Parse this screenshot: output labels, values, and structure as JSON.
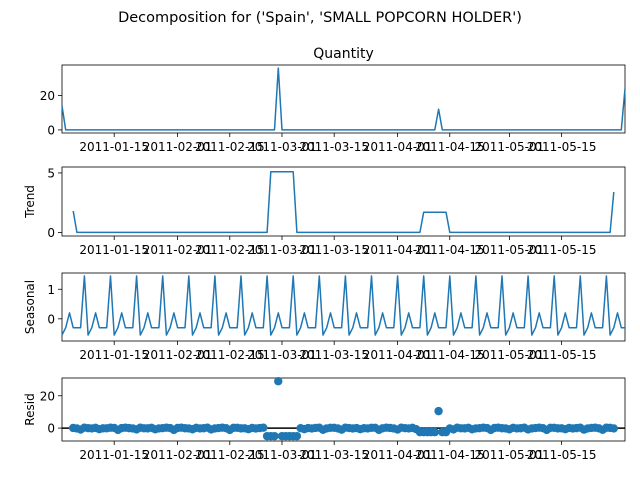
{
  "suptitle": "Decomposition for ('Spain', 'SMALL POPCORN HOLDER')",
  "colors": {
    "series": "#1f77b4",
    "zero_line": "#000000",
    "axes": "#000000"
  },
  "chart_data": [
    {
      "type": "line",
      "name": "observed",
      "title": "Quantity",
      "ylabel": "",
      "ylim": [
        -1.8,
        37.8
      ],
      "yticks": [
        0,
        20
      ],
      "x_tick_labels": [
        "2011-01-15",
        "2011-02-01",
        "2011-02-15",
        "2011-03-01",
        "2011-03-15",
        "2011-04-01",
        "2011-04-15",
        "2011-05-01",
        "2011-05-15"
      ],
      "x_ticks_day": [
        9,
        26,
        40,
        54,
        68,
        85,
        99,
        115,
        129
      ],
      "x_range_days": [
        -5,
        146
      ],
      "default_value": 0,
      "spikes": [
        {
          "day": 53,
          "value": 36
        },
        {
          "day": 96,
          "value": 12
        },
        {
          "day": 146,
          "value": 24
        }
      ],
      "start": {
        "day": -5,
        "value": 14
      }
    },
    {
      "type": "line",
      "name": "trend",
      "title": "",
      "ylabel": "Trend",
      "ylim": [
        -0.3,
        5.5
      ],
      "yticks": [
        0,
        5
      ],
      "segments": [
        {
          "days": [
            -2,
            -1,
            134
          ],
          "values": [
            1.8,
            0.0,
            0.0
          ]
        },
        {
          "note": "plateaus",
          "points": [
            [
              -2,
              1.8
            ],
            [
              -1,
              0
            ],
            [
              50,
              0
            ],
            [
              51,
              5.1
            ],
            [
              57,
              5.1
            ],
            [
              58,
              0
            ],
            [
              91,
              0
            ],
            [
              92,
              1.7
            ],
            [
              98,
              1.7
            ],
            [
              99,
              0
            ],
            [
              142,
              0
            ],
            [
              143,
              3.4
            ]
          ]
        }
      ]
    },
    {
      "type": "line",
      "name": "seasonal",
      "title": "",
      "ylabel": "Seasonal",
      "ylim": [
        -0.75,
        1.55
      ],
      "yticks": [
        0,
        1
      ],
      "period": 7,
      "pattern": [
        -0.55,
        -0.3,
        0.2,
        -0.3,
        -0.3,
        -0.3,
        1.45
      ],
      "pattern_start_day": -5
    },
    {
      "type": "scatter",
      "name": "resid",
      "title": "",
      "ylabel": "Resid",
      "ylim": [
        -8,
        31
      ],
      "yticks": [
        0,
        20
      ],
      "outliers": [
        {
          "day": 53,
          "value": 29
        },
        {
          "day": 96,
          "value": 10.5
        }
      ],
      "negative_runs": [
        {
          "days": [
            50,
            58
          ],
          "value": -5
        },
        {
          "days": [
            91,
            98
          ],
          "value": -2.5
        }
      ]
    }
  ]
}
